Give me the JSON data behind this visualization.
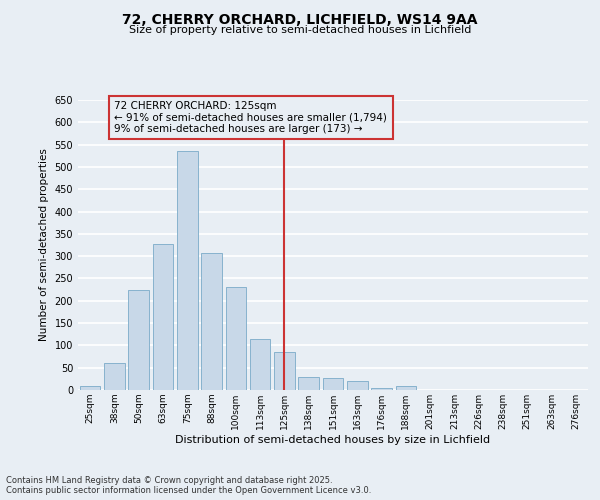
{
  "title1": "72, CHERRY ORCHARD, LICHFIELD, WS14 9AA",
  "title2": "Size of property relative to semi-detached houses in Lichfield",
  "xlabel": "Distribution of semi-detached houses by size in Lichfield",
  "ylabel": "Number of semi-detached properties",
  "categories": [
    "25sqm",
    "38sqm",
    "50sqm",
    "63sqm",
    "75sqm",
    "88sqm",
    "100sqm",
    "113sqm",
    "125sqm",
    "138sqm",
    "151sqm",
    "163sqm",
    "176sqm",
    "188sqm",
    "201sqm",
    "213sqm",
    "226sqm",
    "238sqm",
    "251sqm",
    "263sqm",
    "276sqm"
  ],
  "values": [
    8,
    60,
    225,
    328,
    535,
    308,
    230,
    115,
    85,
    30,
    27,
    20,
    5,
    8,
    0,
    0,
    0,
    0,
    0,
    0,
    0
  ],
  "bar_color": "#c8d8e8",
  "bar_edge_color": "#7aaac8",
  "highlight_index": 8,
  "highlight_color": "#cc3333",
  "highlight_label": "72 CHERRY ORCHARD: 125sqm\n← 91% of semi-detached houses are smaller (1,794)\n9% of semi-detached houses are larger (173) →",
  "ylim": [
    0,
    650
  ],
  "yticks": [
    0,
    50,
    100,
    150,
    200,
    250,
    300,
    350,
    400,
    450,
    500,
    550,
    600,
    650
  ],
  "background_color": "#e8eef4",
  "grid_color": "#ffffff",
  "footer": "Contains HM Land Registry data © Crown copyright and database right 2025.\nContains public sector information licensed under the Open Government Licence v3.0."
}
